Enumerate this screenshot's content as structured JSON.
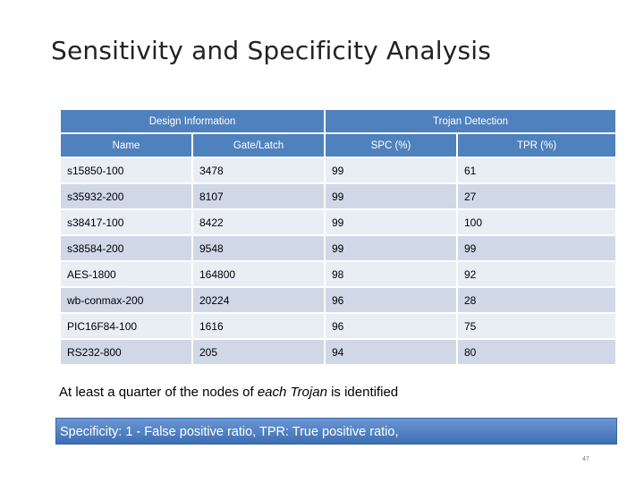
{
  "slide": {
    "title": "Sensitivity and Specificity Analysis",
    "note_prefix": "At least a quarter of the nodes of ",
    "note_emphasis": "each Trojan",
    "note_suffix": " is identified",
    "banner": "Specificity: 1 - False positive ratio, TPR: True positive ratio,",
    "page_number": "47"
  },
  "table": {
    "group_headers": [
      "Design Information",
      "Trojan Detection"
    ],
    "columns": [
      "Name",
      "Gate/Latch",
      "SPC (%)",
      "TPR (%)"
    ],
    "rows": [
      [
        "s15850-100",
        "3478",
        "99",
        "61"
      ],
      [
        "s35932-200",
        "8107",
        "99",
        "27"
      ],
      [
        "s38417-100",
        "8422",
        "99",
        "100"
      ],
      [
        "s38584-200",
        "9548",
        "99",
        "99"
      ],
      [
        "AES-1800",
        "164800",
        "98",
        "92"
      ],
      [
        "wb-conmax-200",
        "20224",
        "96",
        "28"
      ],
      [
        "PIC16F84-100",
        "1616",
        "96",
        "75"
      ],
      [
        "RS232-800",
        "205",
        "94",
        "80"
      ]
    ]
  }
}
